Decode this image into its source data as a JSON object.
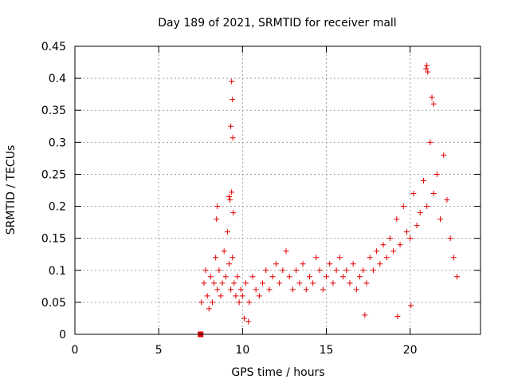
{
  "chart_data": {
    "type": "scatter",
    "title": "Day 189 of 2021, SRMTID for receiver mall",
    "xlabel": "GPS time / hours",
    "ylabel": "SRMTID / TECUs",
    "xlim": [
      0,
      24.2
    ],
    "ylim": [
      0,
      0.45
    ],
    "grid": true,
    "marker": "+",
    "color": "#e00000",
    "x_ticks": [
      0,
      5,
      10,
      15,
      20
    ],
    "x_tick_labels": [
      "0",
      "5",
      "10",
      "15",
      "20"
    ],
    "y_ticks": [
      0,
      0.05,
      0.1,
      0.15,
      0.2,
      0.25,
      0.3,
      0.35,
      0.4,
      0.45
    ],
    "y_tick_labels": [
      "0",
      "0.05",
      "0.1",
      "0.15",
      "0.2",
      "0.25",
      "0.3",
      "0.35",
      "0.4",
      "0.45"
    ],
    "series": [
      {
        "name": "SRMTID",
        "x": [
          7.55,
          7.7,
          7.8,
          7.9,
          8.0,
          8.1,
          8.2,
          8.3,
          8.4,
          8.5,
          8.6,
          8.7,
          8.8,
          8.9,
          9.0,
          9.1,
          9.2,
          9.3,
          9.4,
          9.5,
          9.6,
          9.7,
          9.8,
          9.9,
          10.0,
          10.2,
          10.4,
          10.6,
          10.8,
          11.0,
          11.2,
          11.4,
          11.6,
          11.8,
          12.0,
          12.2,
          12.4,
          12.6,
          12.8,
          13.0,
          13.2,
          13.4,
          13.6,
          13.8,
          14.0,
          14.2,
          14.4,
          14.6,
          14.8,
          15.0,
          15.2,
          15.4,
          15.6,
          15.8,
          16.0,
          16.2,
          16.4,
          16.6,
          16.8,
          17.0,
          17.2,
          17.4,
          17.6,
          17.8,
          18.0,
          18.2,
          18.4,
          18.6,
          18.8,
          19.0,
          19.2,
          19.4,
          19.6,
          19.8,
          20.0,
          20.2,
          20.4,
          20.6,
          20.8,
          21.0,
          21.2,
          21.4,
          21.6,
          21.8,
          22.0,
          22.2,
          22.4,
          22.6,
          22.8,
          9.35,
          9.4,
          9.3,
          9.42,
          9.35,
          21.0,
          21.05,
          20.95,
          21.3,
          21.4,
          8.5,
          8.45,
          9.25,
          9.45,
          9.2,
          17.3,
          19.25,
          20.05,
          10.35,
          10.1
        ],
        "y": [
          0.05,
          0.08,
          0.1,
          0.06,
          0.04,
          0.09,
          0.05,
          0.08,
          0.12,
          0.07,
          0.1,
          0.06,
          0.08,
          0.13,
          0.09,
          0.16,
          0.11,
          0.07,
          0.12,
          0.08,
          0.06,
          0.09,
          0.05,
          0.07,
          0.06,
          0.08,
          0.05,
          0.09,
          0.07,
          0.06,
          0.08,
          0.1,
          0.07,
          0.09,
          0.11,
          0.08,
          0.1,
          0.13,
          0.09,
          0.07,
          0.1,
          0.08,
          0.11,
          0.07,
          0.09,
          0.08,
          0.12,
          0.1,
          0.07,
          0.09,
          0.11,
          0.08,
          0.1,
          0.12,
          0.09,
          0.1,
          0.08,
          0.11,
          0.07,
          0.09,
          0.1,
          0.08,
          0.12,
          0.1,
          0.13,
          0.11,
          0.14,
          0.12,
          0.15,
          0.13,
          0.18,
          0.14,
          0.2,
          0.16,
          0.15,
          0.22,
          0.17,
          0.19,
          0.24,
          0.2,
          0.3,
          0.22,
          0.25,
          0.18,
          0.28,
          0.21,
          0.15,
          0.12,
          0.09,
          0.395,
          0.367,
          0.325,
          0.307,
          0.222,
          0.42,
          0.41,
          0.415,
          0.37,
          0.36,
          0.2,
          0.18,
          0.21,
          0.19,
          0.215,
          0.03,
          0.028,
          0.045,
          0.02,
          0.025
        ]
      }
    ],
    "extra_marker": {
      "shape": "square",
      "x": 7.5,
      "y": 0.0
    }
  }
}
